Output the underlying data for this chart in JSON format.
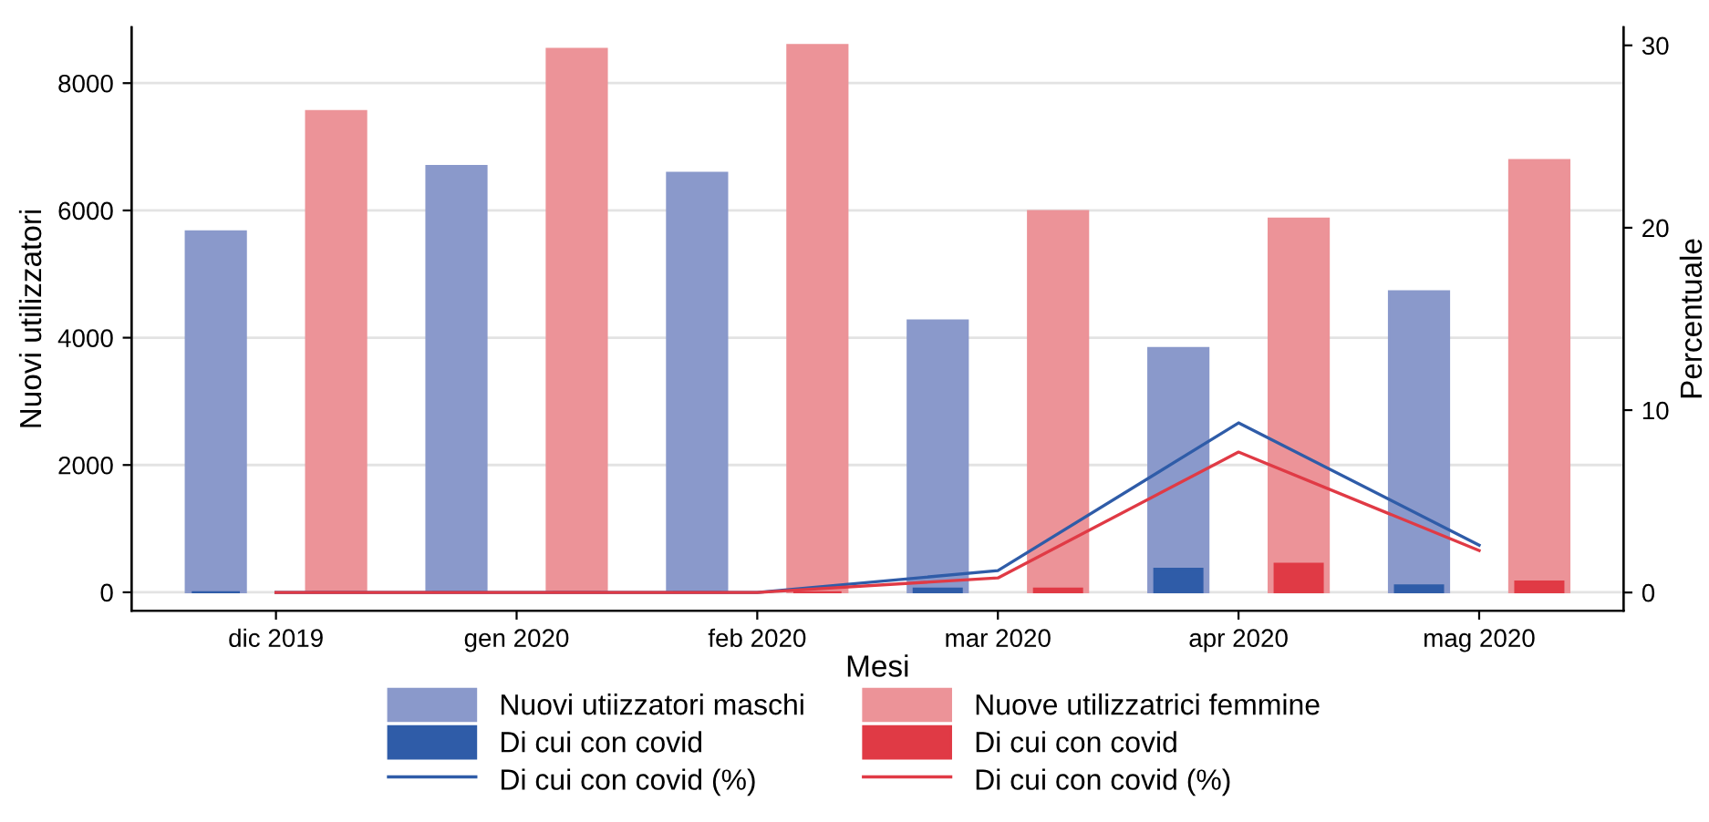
{
  "chart_data": {
    "type": "bar",
    "xlabel": "Mesi",
    "ylabel": "Nuovi utilizzatori",
    "y2label": "Percentuale",
    "categories": [
      "dic 2019",
      "gen 2020",
      "feb 2020",
      "mar 2020",
      "apr 2020",
      "mag 2020"
    ],
    "series": [
      {
        "name": "Nuovi utiizzatori maschi",
        "color": "#8a99cb",
        "values": [
          5670,
          6700,
          6590,
          4270,
          3840,
          4730
        ]
      },
      {
        "name": "Di cui con covid",
        "color": "#2f5ca8",
        "values": [
          0,
          0,
          0,
          60,
          370,
          110
        ]
      },
      {
        "name": "Di cui con covid (%)",
        "color": "#2f5ca8",
        "type": "line",
        "axis": "y2",
        "values": [
          0,
          0,
          0,
          1.2,
          9.3,
          2.6
        ]
      },
      {
        "name": "Nuove utilizzatrici femmine",
        "color": "#ec9398",
        "values": [
          7560,
          8540,
          8600,
          5990,
          5870,
          6790
        ]
      },
      {
        "name": "Di cui con covid",
        "color": "#e03a45",
        "values": [
          0,
          0,
          0,
          60,
          450,
          170
        ]
      },
      {
        "name": "Di cui con covid (%)",
        "color": "#e03a45",
        "type": "line",
        "axis": "y2",
        "values": [
          0,
          0,
          0,
          0.8,
          7.7,
          2.3
        ]
      }
    ],
    "ylim": [
      -290,
      8880
    ],
    "yticks": [
      0,
      2000,
      4000,
      6000,
      8000
    ],
    "y2lim": [
      -1.0,
      31.0
    ],
    "y2ticks": [
      0,
      10,
      20,
      30
    ],
    "grid": "y",
    "legend": "bottom"
  }
}
